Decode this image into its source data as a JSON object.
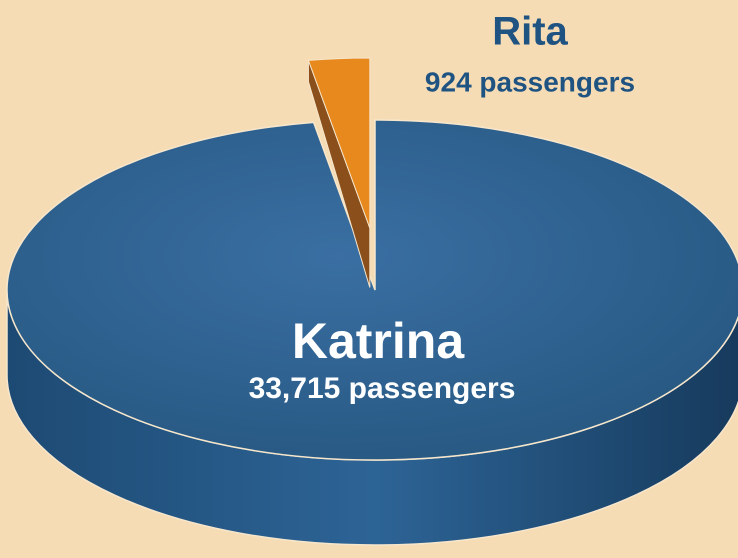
{
  "chart_data": {
    "type": "pie",
    "categories": [
      "Katrina",
      "Rita"
    ],
    "values": [
      33715,
      924
    ],
    "value_labels": [
      "33,715 passengers",
      "924 passengers"
    ],
    "colors": [
      "#2a5f8f",
      "#e8891e"
    ]
  }
}
